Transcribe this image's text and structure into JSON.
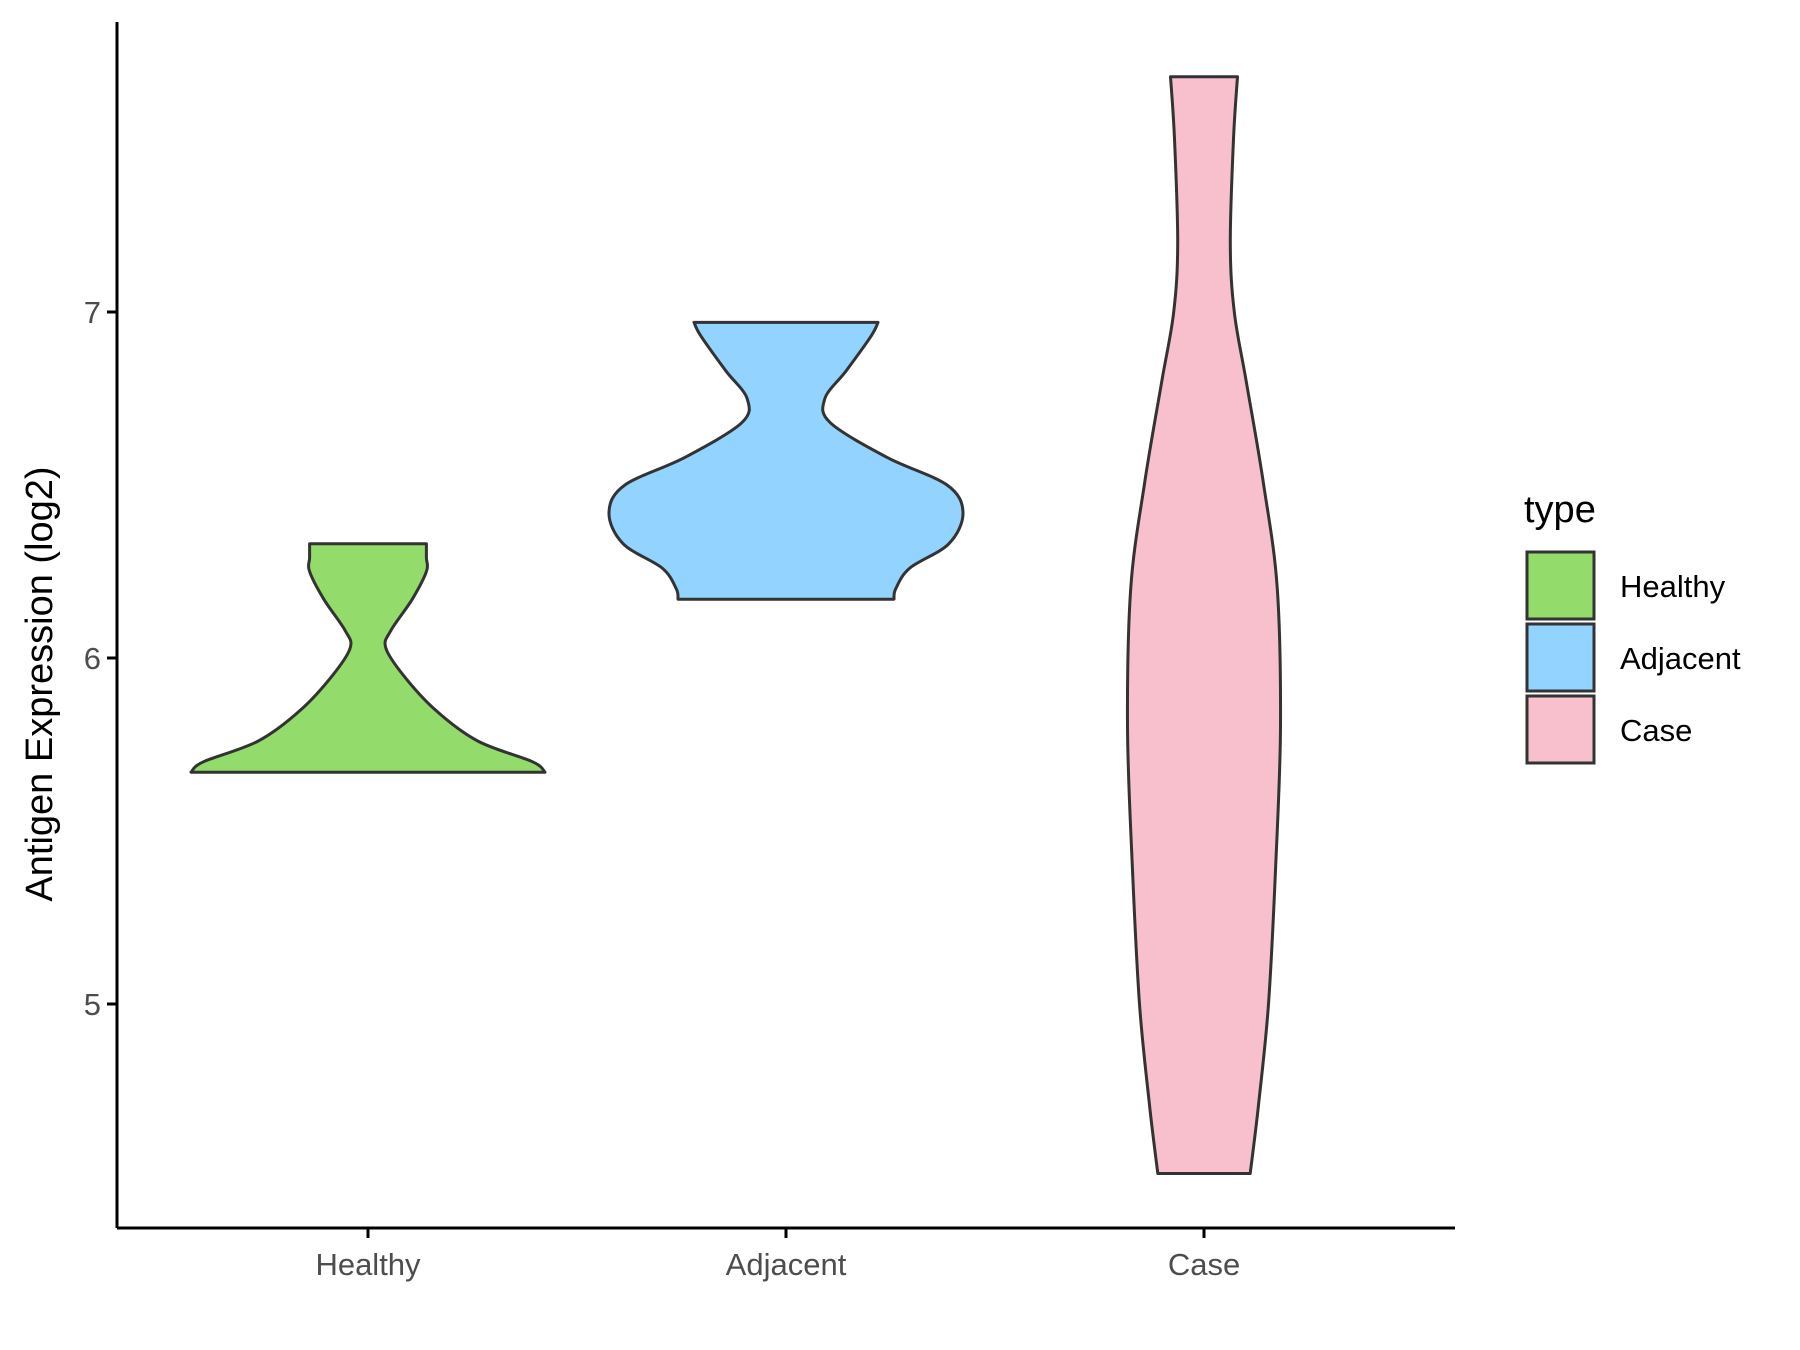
{
  "chart_data": {
    "type": "violin",
    "xlabel": "",
    "ylabel": "Antigen Expression (log2)",
    "categories": [
      "Healthy",
      "Adjacent",
      "Case"
    ],
    "ylim": [
      4.35,
      7.83
    ],
    "yticks": [
      5,
      6,
      7
    ],
    "grid": false,
    "legend": {
      "title": "type",
      "position": "right",
      "entries": [
        "Healthy",
        "Adjacent",
        "Case"
      ]
    },
    "series": [
      {
        "name": "Healthy",
        "color": "#93DB6A",
        "min": 5.67,
        "max": 6.33,
        "profile": [
          [
            5.67,
            1.0
          ],
          [
            5.7,
            0.93
          ],
          [
            5.76,
            0.62
          ],
          [
            5.85,
            0.38
          ],
          [
            5.95,
            0.2
          ],
          [
            6.03,
            0.1
          ],
          [
            6.08,
            0.13
          ],
          [
            6.17,
            0.25
          ],
          [
            6.25,
            0.33
          ],
          [
            6.29,
            0.33
          ],
          [
            6.33,
            0.33
          ]
        ]
      },
      {
        "name": "Adjacent",
        "color": "#93D3FF",
        "min": 6.17,
        "max": 6.97,
        "profile": [
          [
            6.17,
            0.61
          ],
          [
            6.2,
            0.62
          ],
          [
            6.26,
            0.7
          ],
          [
            6.33,
            0.92
          ],
          [
            6.42,
            1.0
          ],
          [
            6.5,
            0.91
          ],
          [
            6.58,
            0.57
          ],
          [
            6.68,
            0.25
          ],
          [
            6.75,
            0.22
          ],
          [
            6.83,
            0.34
          ],
          [
            6.93,
            0.48
          ],
          [
            6.97,
            0.52
          ]
        ]
      },
      {
        "name": "Case",
        "color": "#F7C0CC",
        "min": 4.51,
        "max": 7.68,
        "profile": [
          [
            4.51,
            0.58
          ],
          [
            4.7,
            0.68
          ],
          [
            5.0,
            0.81
          ],
          [
            5.4,
            0.9
          ],
          [
            5.8,
            0.96
          ],
          [
            6.2,
            0.92
          ],
          [
            6.5,
            0.75
          ],
          [
            6.8,
            0.53
          ],
          [
            7.0,
            0.38
          ],
          [
            7.2,
            0.33
          ],
          [
            7.5,
            0.37
          ],
          [
            7.68,
            0.42
          ]
        ]
      }
    ]
  },
  "colors": {
    "outline": "#333333",
    "axis": "#000000",
    "text": "#4d4d4d"
  }
}
